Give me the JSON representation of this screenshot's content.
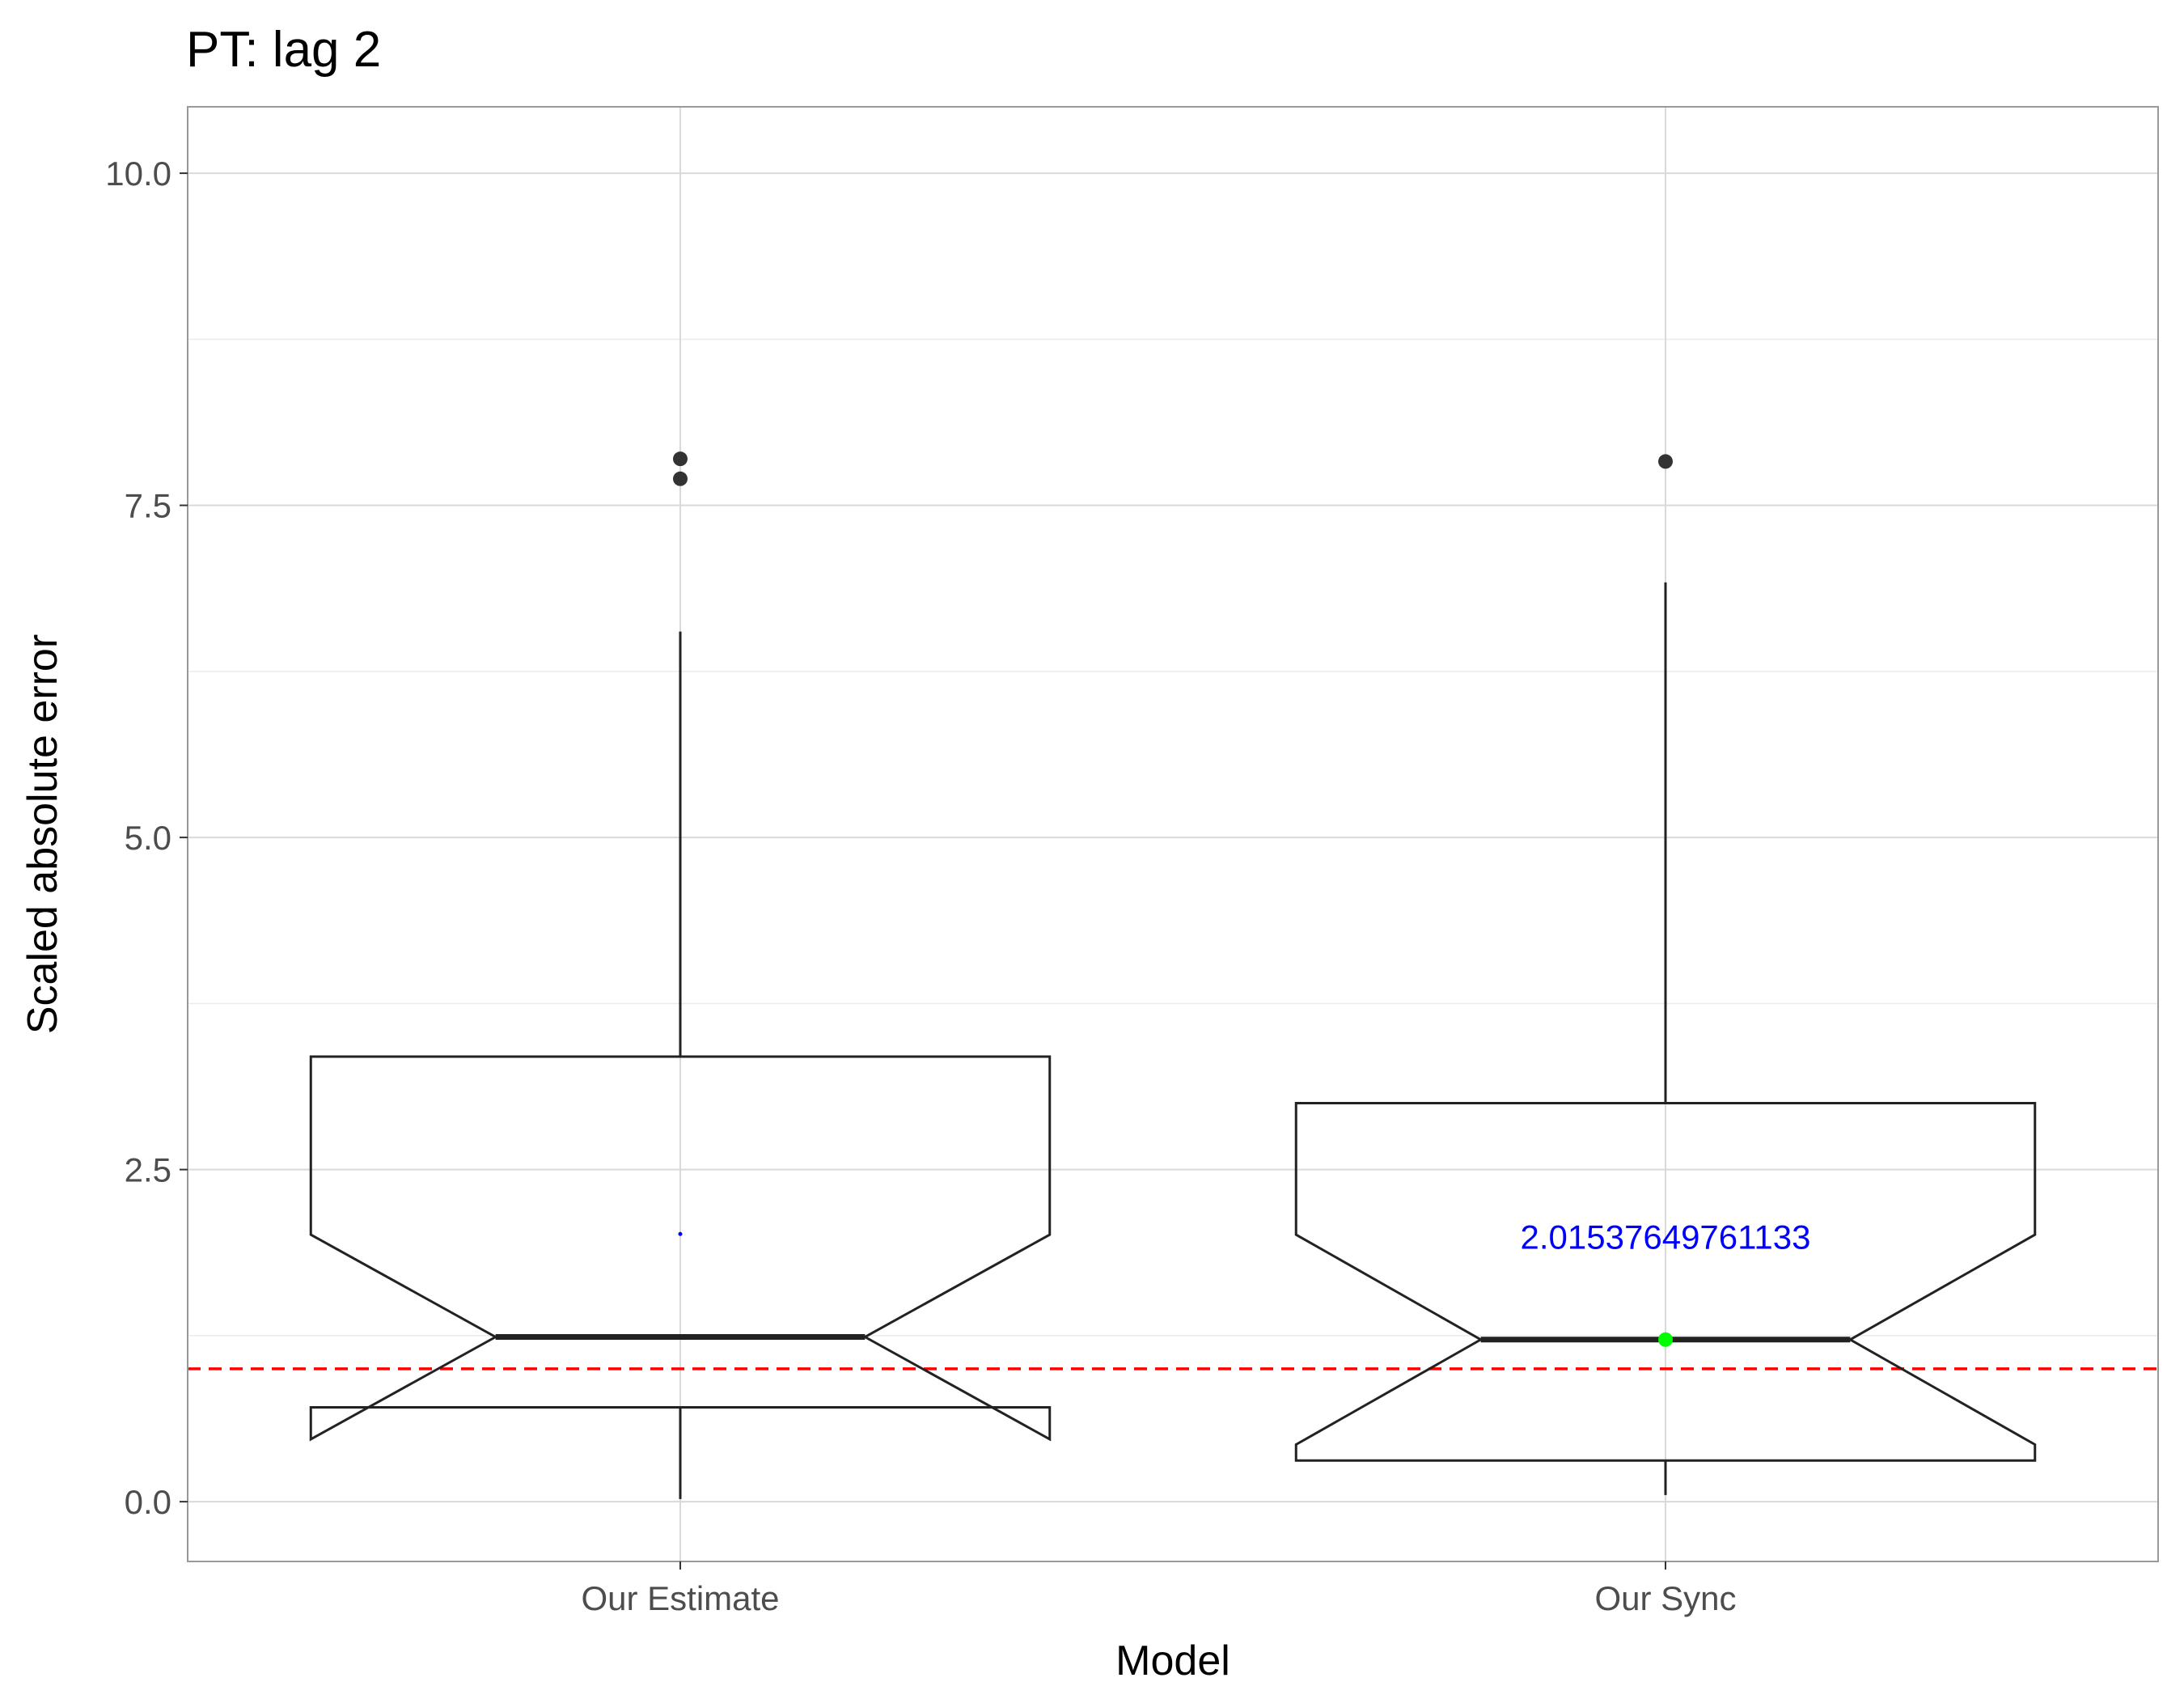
{
  "chart_data": {
    "type": "box",
    "title": "PT: lag 2",
    "xlabel": "Model",
    "ylabel": "Scaled absolute error",
    "categories": [
      "Our Estimate",
      "Our Sync"
    ],
    "ylim": [
      -0.45,
      10.5
    ],
    "yticks": [
      0.0,
      2.5,
      5.0,
      7.5,
      10.0
    ],
    "ytick_labels": [
      "0.0",
      "2.5",
      "5.0",
      "7.5",
      "10.0"
    ],
    "grid": true,
    "notched": true,
    "boxes": [
      {
        "name": "Our Estimate",
        "whisker_low": 0.02,
        "q1": 0.71,
        "median": 1.24,
        "q3": 3.35,
        "whisker_high": 6.55,
        "notch_low": 0.47,
        "notch_high": 2.01,
        "outliers": [
          7.85,
          7.7
        ],
        "mean": 2.015
      },
      {
        "name": "Our Sync",
        "whisker_low": 0.05,
        "q1": 0.31,
        "median": 1.22,
        "q3": 3.0,
        "whisker_high": 6.92,
        "notch_low": 0.43,
        "notch_high": 2.01,
        "outliers": [
          7.83
        ],
        "mean": 1.22
      }
    ],
    "reference_line": {
      "y": 1.0,
      "color": "#ff0000",
      "style": "dashed"
    },
    "annotations": [
      {
        "category": "Our Sync",
        "y": 2.0,
        "text": "2.01537649761133",
        "color": "#0000ff"
      }
    ],
    "colors": {
      "mean_marker_sync": "#00ff00",
      "mean_marker_estimate": "#0000ff",
      "box_line": "#222222",
      "grid": "#d9d9d9",
      "panel_border": "#999999"
    }
  }
}
